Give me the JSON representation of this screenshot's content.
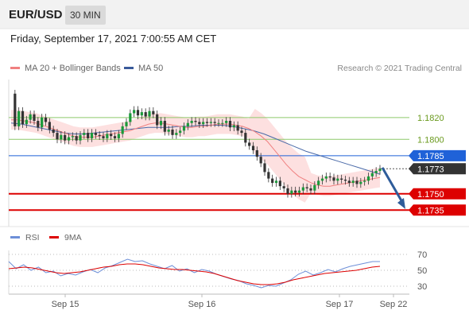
{
  "header": {
    "pair": "EUR/USD",
    "timeframe": "30 MIN"
  },
  "date_text": "Friday, September 17, 2021 7:00:55 AM CET",
  "legend": [
    {
      "label": "MA 20 + Bollinger Bands",
      "color": "#f08080"
    },
    {
      "label": "MA 50",
      "color": "#3a5a9a"
    }
  ],
  "credit": "Research © 2021 Trading Central",
  "chart_data": [
    {
      "type": "line",
      "title": "EUR/USD 30 MIN",
      "ylim": [
        1.1725,
        1.1855
      ],
      "x_ticks": [
        "Sep 15",
        "Sep 16",
        "Sep 17",
        "Sep 22"
      ],
      "levels": [
        {
          "value": 1.182,
          "label": "1.1820",
          "style": "resistance",
          "color": "#8ec96a"
        },
        {
          "value": 1.18,
          "label": "1.1800",
          "style": "resistance",
          "color": "#8ec96a"
        },
        {
          "value": 1.1785,
          "label": "1.1785",
          "style": "pivot",
          "color": "#1f62d8"
        },
        {
          "value": 1.1773,
          "label": "1.1773",
          "style": "last",
          "color": "#333333"
        },
        {
          "value": 1.175,
          "label": "1.1750",
          "style": "support",
          "color": "#dd0000"
        },
        {
          "value": 1.1735,
          "label": "1.1735",
          "style": "support",
          "color": "#dd0000"
        }
      ],
      "price": [
        1.1842,
        1.1812,
        1.1826,
        1.1814,
        1.1818,
        1.1823,
        1.1817,
        1.1811,
        1.182,
        1.1816,
        1.1809,
        1.1806,
        1.18,
        1.1804,
        1.1799,
        1.1802,
        1.1803,
        1.1799,
        1.1804,
        1.1806,
        1.1801,
        1.1806,
        1.1804,
        1.1803,
        1.1801,
        1.1805,
        1.1803,
        1.1801,
        1.1805,
        1.1812,
        1.1816,
        1.1824,
        1.1827,
        1.1822,
        1.1825,
        1.1821,
        1.1826,
        1.1823,
        1.1813,
        1.1817,
        1.1807,
        1.1809,
        1.1804,
        1.1806,
        1.1808,
        1.1812,
        1.1815,
        1.1817,
        1.1816,
        1.1814,
        1.1816,
        1.1815,
        1.1816,
        1.1815,
        1.1815,
        1.1815,
        1.1817,
        1.1811,
        1.1813,
        1.1808,
        1.1806,
        1.1797,
        1.1794,
        1.179,
        1.1784,
        1.1778,
        1.177,
        1.1764,
        1.176,
        1.1762,
        1.1757,
        1.1755,
        1.175,
        1.1753,
        1.1751,
        1.1753,
        1.1756,
        1.1755,
        1.1753,
        1.1758,
        1.1762,
        1.1764,
        1.1766,
        1.1765,
        1.1762,
        1.1764,
        1.1763,
        1.1762,
        1.176,
        1.1762,
        1.1759,
        1.1761,
        1.1762,
        1.1766,
        1.1769,
        1.1771,
        1.1773
      ],
      "ma20": [
        1.1818,
        1.1818,
        1.1817,
        1.1816,
        1.1815,
        1.1813,
        1.1811,
        1.1809,
        1.1807,
        1.1805,
        1.1803,
        1.1802,
        1.1802,
        1.1802,
        1.1803,
        1.1804,
        1.1805,
        1.1806,
        1.1807,
        1.1808,
        1.181,
        1.1812,
        1.1814,
        1.1815,
        1.1815,
        1.1814,
        1.1813,
        1.1812,
        1.1811,
        1.1811,
        1.1812,
        1.1812,
        1.1813,
        1.1814,
        1.1814,
        1.1814,
        1.1813,
        1.1812,
        1.181,
        1.1807,
        1.1803,
        1.1798,
        1.1791,
        1.1784,
        1.1777,
        1.1771,
        1.1766,
        1.1763,
        1.176,
        1.1758,
        1.1757,
        1.1757,
        1.1758,
        1.1759,
        1.176,
        1.1761,
        1.1762,
        1.1763,
        1.1764,
        1.1765
      ],
      "ma50": [
        1.1815,
        1.1814,
        1.1812,
        1.181,
        1.1808,
        1.1806,
        1.1805,
        1.1805,
        1.1806,
        1.1807,
        1.1808,
        1.1809,
        1.181,
        1.1811,
        1.1811,
        1.1811,
        1.1812,
        1.1812,
        1.1813,
        1.1813,
        1.1813,
        1.1812,
        1.181,
        1.1808,
        1.1805,
        1.1801,
        1.1797,
        1.1793,
        1.1789,
        1.1786,
        1.1783,
        1.178,
        1.1777,
        1.1774,
        1.1771,
        1.1768
      ],
      "projection": {
        "from": 1.1774,
        "to": 1.1736
      }
    },
    {
      "type": "line",
      "title": "RSI",
      "ylim": [
        20,
        80
      ],
      "y_ticks": [
        70,
        50,
        30
      ],
      "series": [
        {
          "name": "RSI",
          "color": "#6d8fd8",
          "values": [
            61,
            52,
            57,
            50,
            54,
            47,
            49,
            43,
            46,
            44,
            48,
            51,
            47,
            53,
            56,
            60,
            64,
            61,
            62,
            58,
            55,
            52,
            56,
            49,
            52,
            47,
            51,
            49,
            45,
            42,
            39,
            37,
            33,
            31,
            28,
            31,
            30,
            34,
            38,
            45,
            49,
            44,
            47,
            51,
            48,
            52,
            55,
            57,
            59,
            61,
            61
          ]
        },
        {
          "name": "9MA",
          "color": "#dd0000",
          "values": [
            52,
            53,
            54,
            53,
            51,
            49,
            47,
            46,
            47,
            48,
            50,
            52,
            54,
            55,
            57,
            58,
            58,
            57,
            55,
            53,
            52,
            51,
            51,
            50,
            49,
            48,
            46,
            43,
            40,
            37,
            35,
            33,
            32,
            32,
            33,
            35,
            38,
            40,
            42,
            44,
            46,
            47,
            48,
            49,
            50,
            52,
            54,
            55
          ]
        }
      ]
    }
  ]
}
